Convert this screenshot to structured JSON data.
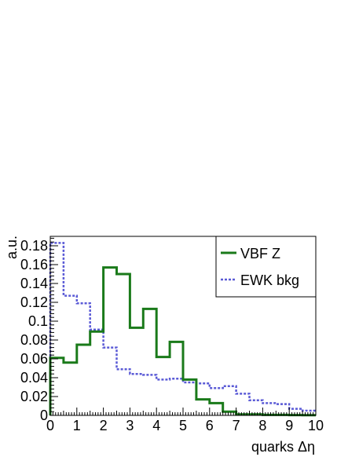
{
  "chart_data": {
    "type": "step-histogram",
    "xlabel": "quarks Δη",
    "ylabel": "a.u.",
    "xlim": [
      0,
      10
    ],
    "ylim": [
      0,
      0.19
    ],
    "x_ticks": [
      "0",
      "1",
      "2",
      "3",
      "4",
      "5",
      "6",
      "7",
      "8",
      "9",
      "10"
    ],
    "y_ticks": [
      "0",
      "0.02",
      "0.04",
      "0.06",
      "0.08",
      "0.1",
      "0.12",
      "0.14",
      "0.16",
      "0.18"
    ],
    "bin_edges": [
      0,
      0.5,
      1,
      1.5,
      2,
      2.5,
      3,
      3.5,
      4,
      4.5,
      5,
      5.5,
      6,
      6.5,
      7,
      7.5,
      8,
      8.5,
      9,
      9.5,
      10
    ],
    "legend_position": "top-right",
    "series": [
      {
        "name": "VBF Z",
        "color": "#1a7a1a",
        "style": "solid",
        "values": [
          0.061,
          0.056,
          0.075,
          0.089,
          0.157,
          0.15,
          0.093,
          0.113,
          0.062,
          0.078,
          0.038,
          0.017,
          0.013,
          0.004,
          0.001,
          0.001,
          0.0005,
          0.0005,
          0.0003,
          0.0002
        ]
      },
      {
        "name": "EWK bkg",
        "color": "#5a5ad6",
        "style": "dotted",
        "values": [
          0.183,
          0.127,
          0.119,
          0.091,
          0.072,
          0.049,
          0.044,
          0.043,
          0.038,
          0.039,
          0.035,
          0.034,
          0.029,
          0.031,
          0.023,
          0.016,
          0.013,
          0.012,
          0.007,
          0.005
        ]
      }
    ]
  }
}
